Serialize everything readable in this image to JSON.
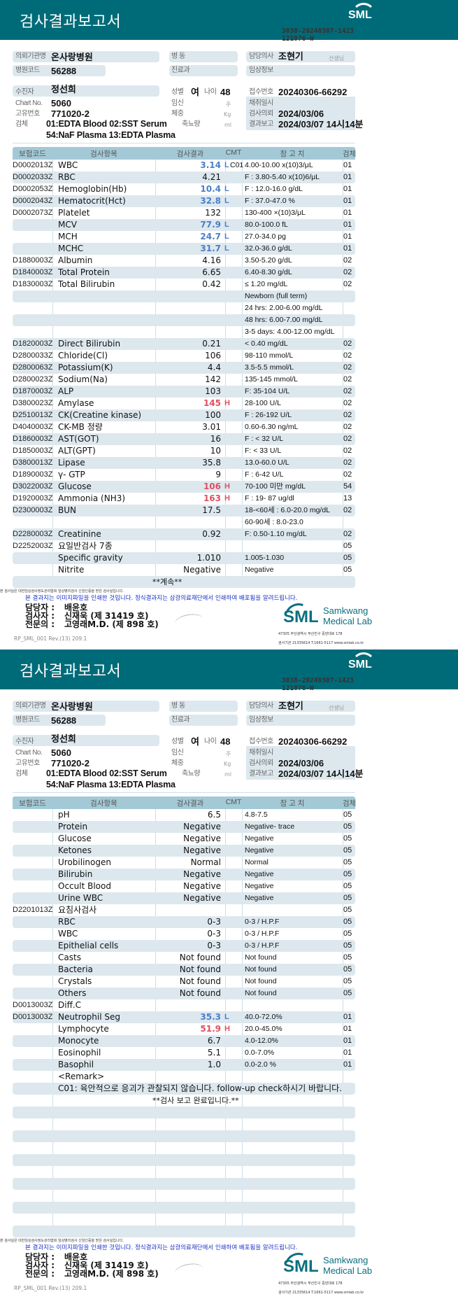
{
  "colors": {
    "header_band": "#006b78",
    "low_flag": "#4a7fc8",
    "high_flag": "#e05060",
    "stripe": "#dde8ee"
  },
  "report": {
    "title": "검사결과보고서",
    "logo_text": "SML",
    "doc_code_line1": "3038-20240307-1423",
    "doc_code_line2": "121076-W",
    "labels": {
      "institution": "의뢰기관명",
      "hospital_code": "병원코드",
      "ward": "병 동",
      "department": "진료과",
      "doctor": "담당의사",
      "doctor_suffix": "선생님",
      "clinical_info": "임상정보",
      "patient": "수진자",
      "chart_no": "Chart No.",
      "id_no": "고유번호",
      "specimen": "검체",
      "sex": "성별",
      "age": "나이",
      "pregnancy": "임신",
      "pregnancy_unit": "주",
      "weight": "체중",
      "weight_unit": "Kg",
      "urine_volume": "축뇨량",
      "urine_unit": "ml",
      "receipt_no": "접수번호",
      "collection_date": "채취일시",
      "request_date": "검사의뢰",
      "report_date": "결과보고"
    },
    "values": {
      "institution": "온사랑병원",
      "hospital_code": "56288",
      "doctor": "조현기",
      "patient": "정선희",
      "chart_no": "5060",
      "id_no": "771020-2",
      "specimen_line1": "01:EDTA Blood 02:SST Serum",
      "specimen_line2": "54:NaF Plasma 13:EDTA Plasma",
      "sex": "여",
      "age": "48",
      "receipt_no": "20240306-66292",
      "request_date": "2024/03/06",
      "report_date": "2024/03/07 14시14분"
    },
    "columns": {
      "code": "보험코드",
      "item": "검사항목",
      "result": "검사결과",
      "cmt": "CMT",
      "ref": "참 고 치",
      "specimen": "검체"
    },
    "footer": {
      "tiny_line": "본 검사실은 대한임상검사정도관리협회 임상병리검사 신임인증을 받은 검사실입니다.",
      "notice": "본 결과지는 이미지파일을 인쇄한 것입니다. 정식결과지는 삼광의료재단에서 인쇄하여 배포됨을 알려드립니다.",
      "staff": [
        {
          "role": "담당자 :",
          "name": "배윤호"
        },
        {
          "role": "검사자 :",
          "name": "신재욱 (제 31419 호)"
        },
        {
          "role": "전문의 :",
          "name": "고영래M.D. (제 898 호)"
        }
      ],
      "lab_name_1": "Samkwang",
      "lab_name_2": "Medical Lab",
      "address": "47305 부산광역시 부산진구 중앙대로 178",
      "contact": "검사기관 21335614 T.1661-5117 www.smlab.co.kr",
      "revision": "RP_SML_001 Rev.(13) 209.1"
    }
  },
  "pages": [
    {
      "rows": [
        {
          "code": "D0002013Z",
          "item": "WBC",
          "result": "3.14",
          "flag": "L",
          "cmt": "C01",
          "ref": "4.00-10.00 x(10)3/μL",
          "spec": "01"
        },
        {
          "code": "D0002033Z",
          "item": "RBC",
          "result": "4.21",
          "ref": "F : 3.80-5.40 x(10)6/μL",
          "spec": "01"
        },
        {
          "code": "D0002053Z",
          "item": "Hemoglobin(Hb)",
          "result": "10.4",
          "flag": "L",
          "ref": "F : 12.0-16.0 g/dL",
          "spec": "01"
        },
        {
          "code": "D0002043Z",
          "item": "Hematocrit(Hct)",
          "result": "32.8",
          "flag": "L",
          "ref": "F : 37.0-47.0 %",
          "spec": "01"
        },
        {
          "code": "D0002073Z",
          "item": "Platelet",
          "result": "132",
          "ref": "130-400 ×(10)3/μL",
          "spec": "01"
        },
        {
          "item": "MCV",
          "result": "77.9",
          "flag": "L",
          "ref": "80.0-100.0 fL",
          "spec": "01"
        },
        {
          "item": "MCH",
          "result": "24.7",
          "flag": "L",
          "ref": "27.0-34.0 pg",
          "spec": "01"
        },
        {
          "item": "MCHC",
          "result": "31.7",
          "flag": "L",
          "ref": "32.0-36.0 g/dL",
          "spec": "01"
        },
        {
          "code": "D1880003Z",
          "item": "Albumin",
          "result": "4.16",
          "ref": "3.50-5.20 g/dL",
          "spec": "02"
        },
        {
          "code": "D1840003Z",
          "item": "Total Protein",
          "result": "6.65",
          "ref": "6.40-8.30 g/dL",
          "spec": "02"
        },
        {
          "code": "D1830003Z",
          "item": "Total Bilirubin",
          "result": "0.42",
          "ref": "≤ 1.20 mg/dL",
          "spec": "02"
        },
        {
          "ref": "Newborn (full term)"
        },
        {
          "ref": "24 hrs: 2.00-6.00 mg/dL"
        },
        {
          "ref": "48 hrs: 6.00-7.00 mg/dL"
        },
        {
          "ref": "3-5 days: 4.00-12.00 mg/dL"
        },
        {
          "code": "D1820003Z",
          "item": "Direct Bilirubin",
          "result": "0.21",
          "ref": "< 0.40 mg/dL",
          "spec": "02"
        },
        {
          "code": "D2800033Z",
          "item": "Chloride(Cl)",
          "result": "106",
          "ref": "98-110 mmol/L",
          "spec": "02"
        },
        {
          "code": "D2800063Z",
          "item": "Potassium(K)",
          "result": "4.4",
          "ref": "3.5-5.5 mmol/L",
          "spec": "02"
        },
        {
          "code": "D2800023Z",
          "item": "Sodium(Na)",
          "result": "142",
          "ref": "135-145 mmol/L",
          "spec": "02"
        },
        {
          "code": "D1870003Z",
          "item": "ALP",
          "result": "103",
          "ref": "F: 35-104 U/L",
          "spec": "02"
        },
        {
          "code": "D3800023Z",
          "item": "Amylase",
          "result": "145",
          "flag": "H",
          "ref": "28-100 U/L",
          "spec": "02"
        },
        {
          "code": "D2510013Z",
          "item": "CK(Creatine kinase)",
          "result": "100",
          "ref": "F : 26-192 U/L",
          "spec": "02"
        },
        {
          "code": "D4040003Z",
          "item": "CK-MB 정량",
          "result": "3.01",
          "ref": "0.60-6.30 ng/mL",
          "spec": "02"
        },
        {
          "code": "D1860003Z",
          "item": "AST(GOT)",
          "result": "16",
          "ref": "F : < 32 U/L",
          "spec": "02"
        },
        {
          "code": "D1850003Z",
          "item": "ALT(GPT)",
          "result": "10",
          "ref": "F: < 33 U/L",
          "spec": "02"
        },
        {
          "code": "D3800013Z",
          "item": "Lipase",
          "result": "35.8",
          "ref": "13.0-60.0 U/L",
          "spec": "02"
        },
        {
          "code": "D1890003Z",
          "item": "γ- GTP",
          "result": "9",
          "ref": "F : 6-42 U/L",
          "spec": "02"
        },
        {
          "code": "D3022003Z",
          "item": "Glucose",
          "result": "106",
          "flag": "H",
          "ref": "70-100 미만 mg/dL",
          "spec": "54"
        },
        {
          "code": "D1920003Z",
          "item": "Ammonia (NH3)",
          "result": "163",
          "flag": "H",
          "ref": "F : 19- 87 ug/dl",
          "spec": "13"
        },
        {
          "code": "D2300003Z",
          "item": "BUN",
          "result": "17.5",
          "ref": "18-<60세 : 6.0-20.0 mg/dL",
          "spec": "02"
        },
        {
          "ref": "60-90세 : 8.0-23.0"
        },
        {
          "code": "D2280003Z",
          "item": "Creatinine",
          "result": "0.92",
          "ref": "F: 0.50-1.10 mg/dL",
          "spec": "02"
        },
        {
          "code": "D2252003Z",
          "item": "요일반검사 7종",
          "spec": "05"
        },
        {
          "item": "Specific gravity",
          "result": "1.010",
          "ref": "1.005-1.030",
          "spec": "05"
        },
        {
          "item": "Nitrite",
          "result": "Negative",
          "ref": "Negative",
          "spec": "05"
        },
        {
          "center": "**계속**"
        }
      ]
    },
    {
      "rows": [
        {
          "item": "pH",
          "result": "6.5",
          "ref": "4.8-7.5",
          "spec": "05"
        },
        {
          "item": "Protein",
          "result": "Negative",
          "ref": "Negative- trace",
          "spec": "05"
        },
        {
          "item": "Glucose",
          "result": "Negative",
          "ref": "Negative",
          "spec": "05"
        },
        {
          "item": "Ketones",
          "result": "Negative",
          "ref": "Negative",
          "spec": "05"
        },
        {
          "item": "Urobilinogen",
          "result": "Normal",
          "ref": "Normal",
          "spec": "05"
        },
        {
          "item": "Bilirubin",
          "result": "Negative",
          "ref": "Negative",
          "spec": "05"
        },
        {
          "item": "Occult Blood",
          "result": "Negative",
          "ref": "Negative",
          "spec": "05"
        },
        {
          "item": "Urine WBC",
          "result": "Negative",
          "ref": "Negative",
          "spec": "05"
        },
        {
          "code": "D2201013Z",
          "item": "요침사검사",
          "spec": "05"
        },
        {
          "item": "RBC",
          "result": "0-3",
          "ref": "0-3 / H.P.F",
          "spec": "05"
        },
        {
          "item": "WBC",
          "result": "0-3",
          "ref": "0-3 / H.P.F",
          "spec": "05"
        },
        {
          "item": "Epithelial cells",
          "result": "0-3",
          "ref": "0-3 / H.P.F",
          "spec": "05"
        },
        {
          "item": "Casts",
          "result": "Not found",
          "ref": "Not found",
          "spec": "05"
        },
        {
          "item": "Bacteria",
          "result": "Not found",
          "ref": "Not found",
          "spec": "05"
        },
        {
          "item": "Crystals",
          "result": "Not found",
          "ref": "Not found",
          "spec": "05"
        },
        {
          "item": "Others",
          "result": "Not found",
          "ref": "Not found",
          "spec": "05"
        },
        {
          "code": "D0013003Z",
          "item": "Diff.C"
        },
        {
          "code": "D0013003Z",
          "item": "Neutrophil Seg",
          "result": "35.3",
          "flag": "L",
          "ref": "40.0-72.0%",
          "spec": "01"
        },
        {
          "item": "Lymphocyte",
          "result": "51.9",
          "flag": "H",
          "ref": "20.0-45.0%",
          "spec": "01"
        },
        {
          "item": "Monocyte",
          "result": "6.7",
          "ref": "4.0-12.0%",
          "spec": "01"
        },
        {
          "item": "Eosinophil",
          "result": "5.1",
          "ref": "0.0-7.0%",
          "spec": "01"
        },
        {
          "item": "Basophil",
          "result": "1.0",
          "ref": "0.0-2.0 %",
          "spec": "01"
        },
        {
          "wide": "<Remark>"
        },
        {
          "wide": "C01: 육안적으로 응괴가 관찰되지 않습니다. follow-up check하시기 바랍니다."
        },
        {
          "center": "**검사  보고  완료입니다.**"
        }
      ]
    }
  ]
}
